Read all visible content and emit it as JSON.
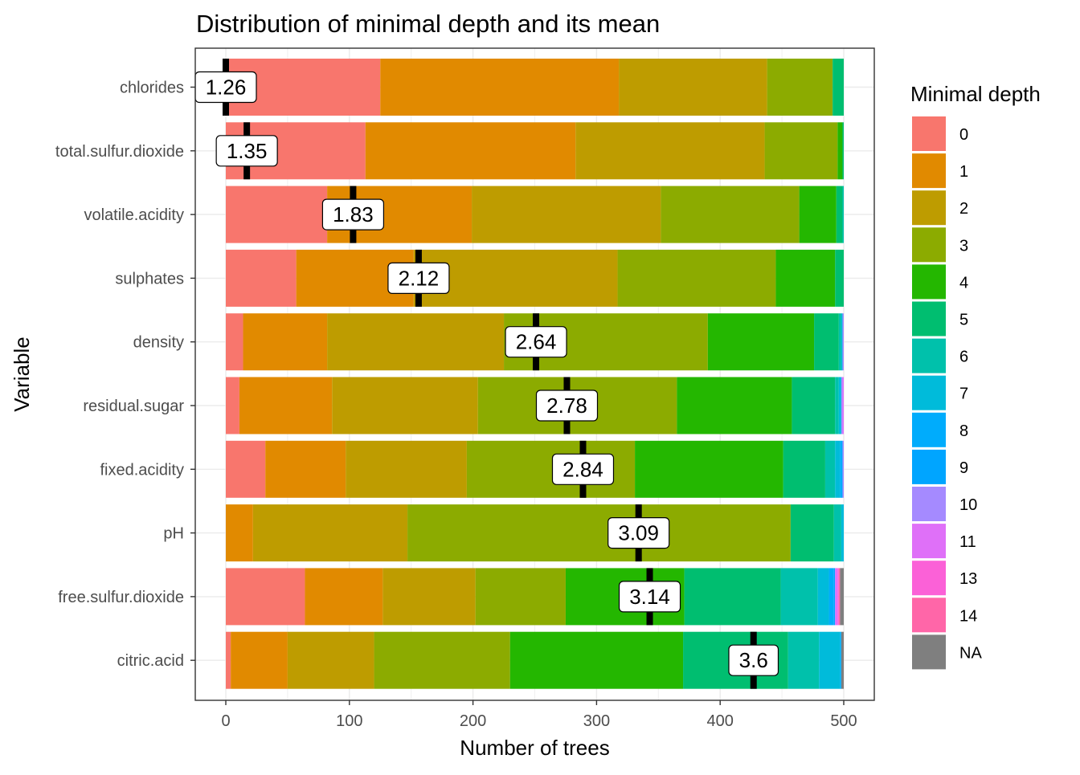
{
  "chart_data": {
    "type": "bar",
    "orientation": "horizontal",
    "stacked": true,
    "title": "Distribution of minimal depth and its mean",
    "xlabel": "Number of trees",
    "ylabel": "Variable",
    "xlim": [
      0,
      500
    ],
    "x_ticks": [
      0,
      100,
      200,
      300,
      400,
      500
    ],
    "grid": true,
    "legend_title": "Minimal depth",
    "legend_position": "right",
    "legend": [
      {
        "label": "0",
        "color": "#F8766D"
      },
      {
        "label": "1",
        "color": "#E18A00"
      },
      {
        "label": "2",
        "color": "#BE9C00"
      },
      {
        "label": "3",
        "color": "#8CAB00"
      },
      {
        "label": "4",
        "color": "#24B700"
      },
      {
        "label": "5",
        "color": "#00BE70"
      },
      {
        "label": "6",
        "color": "#00C1AB"
      },
      {
        "label": "7",
        "color": "#00BBDA"
      },
      {
        "label": "8",
        "color": "#00ACFC"
      },
      {
        "label": "9",
        "color": "#00A5FF"
      },
      {
        "label": "10",
        "color": "#A58AFF"
      },
      {
        "label": "11",
        "color": "#DF70F8"
      },
      {
        "label": "13",
        "color": "#FB61D7"
      },
      {
        "label": "14",
        "color": "#FF66A8"
      },
      {
        "label": "NA",
        "color": "#7F7F7F"
      }
    ],
    "categories": [
      "chlorides",
      "total.sulfur.dioxide",
      "volatile.acidity",
      "sulphates",
      "density",
      "residual.sugar",
      "fixed.acidity",
      "pH",
      "free.sulfur.dioxide",
      "citric.acid"
    ],
    "series": [
      {
        "name": "0",
        "values": [
          125,
          113,
          82,
          57,
          14,
          11,
          32,
          0,
          64,
          4
        ]
      },
      {
        "name": "1",
        "values": [
          193,
          170,
          117,
          95,
          68,
          75,
          65,
          22,
          63,
          46
        ]
      },
      {
        "name": "2",
        "values": [
          120,
          153,
          153,
          165,
          143,
          118,
          98,
          125,
          75,
          70
        ]
      },
      {
        "name": "3",
        "values": [
          53,
          59,
          112,
          128,
          165,
          161,
          136,
          310,
          73,
          110
        ]
      },
      {
        "name": "4",
        "values": [
          0,
          4,
          30,
          48,
          86,
          93,
          120,
          0,
          96,
          140
        ]
      },
      {
        "name": "5",
        "values": [
          9,
          1,
          5,
          7,
          20,
          35,
          34,
          35,
          78,
          85
        ]
      },
      {
        "name": "6",
        "values": [
          0,
          0,
          1,
          0,
          2,
          3,
          8,
          6,
          30,
          25
        ]
      },
      {
        "name": "7",
        "values": [
          0,
          0,
          0,
          0,
          1,
          2,
          4,
          2,
          9,
          17
        ]
      },
      {
        "name": "8",
        "values": [
          0,
          0,
          0,
          0,
          0,
          0,
          2,
          0,
          4,
          1
        ]
      },
      {
        "name": "9",
        "values": [
          0,
          0,
          0,
          0,
          0,
          0,
          0,
          0,
          1,
          0
        ]
      },
      {
        "name": "10",
        "values": [
          0,
          0,
          0,
          0,
          1,
          1,
          1,
          0,
          0,
          0
        ]
      },
      {
        "name": "11",
        "values": [
          0,
          0,
          0,
          0,
          0,
          1,
          0,
          0,
          2,
          0
        ]
      },
      {
        "name": "13",
        "values": [
          0,
          0,
          0,
          0,
          0,
          0,
          0,
          0,
          1,
          0
        ]
      },
      {
        "name": "14",
        "values": [
          0,
          0,
          0,
          0,
          0,
          0,
          0,
          0,
          1,
          0
        ]
      },
      {
        "name": "NA",
        "values": [
          0,
          0,
          0,
          0,
          0,
          0,
          0,
          0,
          3,
          2
        ]
      }
    ],
    "mean_labels": [
      "1.26",
      "1.35",
      "1.83",
      "2.12",
      "2.64",
      "2.78",
      "2.84",
      "3.09",
      "3.14",
      "3.6"
    ],
    "mean_marker_x": [
      0,
      17,
      103,
      156,
      251,
      276,
      289,
      334,
      343,
      427
    ]
  }
}
